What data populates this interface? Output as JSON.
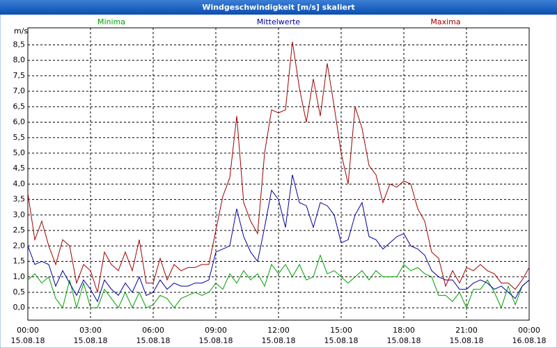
{
  "chart_data": {
    "type": "line",
    "title": "Windgeschwindigkeit [m/s] skaliert",
    "y_unit": "m/s",
    "x": [
      0,
      20,
      40,
      60,
      80,
      100,
      120,
      140,
      160,
      180,
      200,
      220,
      240,
      260,
      280,
      300,
      320,
      340,
      360,
      380,
      400,
      420,
      440,
      460,
      480,
      500,
      520,
      540,
      560,
      580,
      600,
      620,
      640,
      660,
      680,
      700,
      720,
      740,
      760,
      780,
      800,
      820,
      840,
      860,
      880,
      900,
      920,
      940,
      960,
      980,
      1000,
      1020,
      1040,
      1060,
      1080,
      1100,
      1120,
      1140,
      1160,
      1180,
      1200,
      1220,
      1240,
      1260,
      1280,
      1300,
      1320,
      1340,
      1360,
      1380,
      1400,
      1420,
      1440
    ],
    "series": [
      {
        "name": "Minima",
        "color": "#00a000",
        "values": [
          0.9,
          1.1,
          0.8,
          1.0,
          0.3,
          0.0,
          0.9,
          0.0,
          0.8,
          0.0,
          0.0,
          0.6,
          0.3,
          0.0,
          0.5,
          0.0,
          0.5,
          0.0,
          0.1,
          0.4,
          0.3,
          0.0,
          0.3,
          0.4,
          0.5,
          0.4,
          0.5,
          0.8,
          0.6,
          1.1,
          0.8,
          1.2,
          0.9,
          1.1,
          0.7,
          1.4,
          1.1,
          1.4,
          1.0,
          1.4,
          0.9,
          1.0,
          1.7,
          1.1,
          1.2,
          1.0,
          0.8,
          1.0,
          1.2,
          0.9,
          1.2,
          1.0,
          1.0,
          1.0,
          1.4,
          1.2,
          1.3,
          1.1,
          1.0,
          0.4,
          0.4,
          0.2,
          0.5,
          0.0,
          0.6,
          0.6,
          0.9,
          0.5,
          0.0,
          0.7,
          0.1,
          0.7,
          0.9
        ]
      },
      {
        "name": "Mittelwerte",
        "color": "#0000a0",
        "values": [
          2.0,
          1.4,
          1.5,
          1.4,
          0.7,
          1.2,
          0.8,
          0.4,
          0.9,
          0.6,
          0.2,
          0.9,
          0.6,
          0.4,
          0.8,
          0.5,
          1.0,
          0.4,
          0.5,
          0.9,
          0.6,
          0.8,
          0.7,
          0.7,
          0.8,
          0.8,
          0.9,
          1.8,
          1.9,
          2.0,
          3.2,
          2.3,
          1.8,
          1.5,
          2.6,
          3.8,
          3.5,
          2.6,
          4.3,
          3.4,
          3.3,
          2.6,
          3.4,
          3.3,
          3.0,
          2.1,
          2.2,
          3.0,
          3.4,
          2.3,
          2.2,
          1.9,
          2.1,
          2.3,
          2.4,
          2.0,
          1.9,
          1.7,
          1.2,
          1.0,
          0.9,
          0.9,
          0.6,
          0.6,
          0.8,
          0.9,
          0.8,
          0.6,
          0.7,
          0.5,
          0.3,
          0.7,
          0.9
        ]
      },
      {
        "name": "Maxima",
        "color": "#a00000",
        "values": [
          3.7,
          2.2,
          2.8,
          2.0,
          1.4,
          2.2,
          2.0,
          0.8,
          1.4,
          1.2,
          0.5,
          1.8,
          1.4,
          1.2,
          1.8,
          1.2,
          2.2,
          0.8,
          0.8,
          1.6,
          0.9,
          1.4,
          1.2,
          1.3,
          1.3,
          1.4,
          1.4,
          2.5,
          3.6,
          4.2,
          6.2,
          3.4,
          2.8,
          2.4,
          5.0,
          6.4,
          6.3,
          6.4,
          8.6,
          7.1,
          6.0,
          7.4,
          6.2,
          7.9,
          6.5,
          5.0,
          4.0,
          6.5,
          5.8,
          4.6,
          4.3,
          3.4,
          4.0,
          3.9,
          4.1,
          4.0,
          3.2,
          2.8,
          1.8,
          1.6,
          0.7,
          1.2,
          0.8,
          1.3,
          1.2,
          1.4,
          1.2,
          1.1,
          0.8,
          0.8,
          0.6,
          0.9,
          1.3
        ]
      }
    ],
    "xlim": [
      0,
      1440
    ],
    "xticks": [
      {
        "value": 0,
        "label": "00:00",
        "sublabel": "15.08.18"
      },
      {
        "value": 180,
        "label": "03:00",
        "sublabel": "15.08.18"
      },
      {
        "value": 360,
        "label": "06:00",
        "sublabel": "15.08.18"
      },
      {
        "value": 540,
        "label": "09:00",
        "sublabel": "15.08.18"
      },
      {
        "value": 720,
        "label": "12:00",
        "sublabel": "15.08.18"
      },
      {
        "value": 900,
        "label": "15:00",
        "sublabel": "15.08.18"
      },
      {
        "value": 1080,
        "label": "18:00",
        "sublabel": "15.08.18"
      },
      {
        "value": 1260,
        "label": "21:00",
        "sublabel": "15.08.18"
      },
      {
        "value": 1440,
        "label": "00:00",
        "sublabel": "16.08.18"
      }
    ],
    "ylim": [
      -0.4,
      9.05
    ],
    "yticks": [
      {
        "value": 0,
        "label": "0,0"
      },
      {
        "value": 0.5,
        "label": "0,5"
      },
      {
        "value": 1,
        "label": "1,0"
      },
      {
        "value": 1.5,
        "label": "1,5"
      },
      {
        "value": 2,
        "label": "2,0"
      },
      {
        "value": 2.5,
        "label": "2,5"
      },
      {
        "value": 3,
        "label": "3,0"
      },
      {
        "value": 3.5,
        "label": "3,5"
      },
      {
        "value": 4,
        "label": "4,0"
      },
      {
        "value": 4.5,
        "label": "4,5"
      },
      {
        "value": 5,
        "label": "5,0"
      },
      {
        "value": 5.5,
        "label": "5,5"
      },
      {
        "value": 6,
        "label": "6,0"
      },
      {
        "value": 6.5,
        "label": "6,5"
      },
      {
        "value": 7,
        "label": "7,0"
      },
      {
        "value": 7.5,
        "label": "7,5"
      },
      {
        "value": 8,
        "label": "8,0"
      },
      {
        "value": 8.5,
        "label": "8,5"
      }
    ],
    "grid": true
  }
}
